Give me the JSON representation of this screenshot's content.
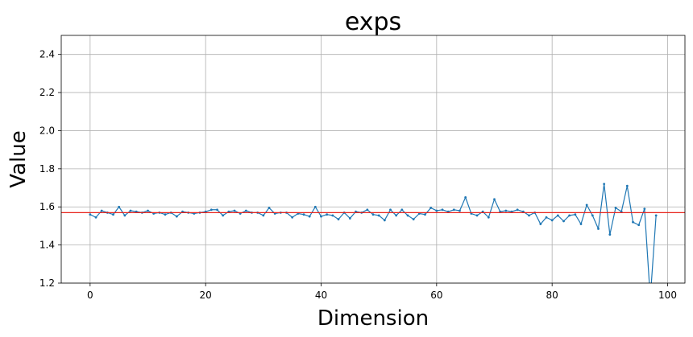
{
  "chart_data": {
    "type": "line",
    "title": "exps",
    "xlabel": "Dimension",
    "ylabel": "Value",
    "xlim": [
      -5,
      103
    ],
    "ylim": [
      1.2,
      2.5
    ],
    "xticks": [
      0,
      20,
      40,
      60,
      80,
      100
    ],
    "yticks": [
      1.2,
      1.4,
      1.6,
      1.8,
      2.0,
      2.2,
      2.4
    ],
    "xtick_labels": [
      "0",
      "20",
      "40",
      "60",
      "80",
      "100"
    ],
    "ytick_labels": [
      "1.2",
      "1.4",
      "1.6",
      "1.8",
      "2.0",
      "2.2",
      "2.4"
    ],
    "grid": true,
    "series": [
      {
        "color": "#1f77b4",
        "x": [
          0,
          1,
          2,
          3,
          4,
          5,
          6,
          7,
          8,
          9,
          10,
          11,
          12,
          13,
          14,
          15,
          16,
          17,
          18,
          19,
          20,
          21,
          22,
          23,
          24,
          25,
          26,
          27,
          28,
          29,
          30,
          31,
          32,
          33,
          34,
          35,
          36,
          37,
          38,
          39,
          40,
          41,
          42,
          43,
          44,
          45,
          46,
          47,
          48,
          49,
          50,
          51,
          52,
          53,
          54,
          55,
          56,
          57,
          58,
          59,
          60,
          61,
          62,
          63,
          64,
          65,
          66,
          67,
          68,
          69,
          70,
          71,
          72,
          73,
          74,
          75,
          76,
          77,
          78,
          79,
          80,
          81,
          82,
          83,
          84,
          85,
          86,
          87,
          88,
          89,
          90,
          91,
          92,
          93,
          94,
          95,
          96,
          97,
          98
        ],
        "values": [
          1.56,
          1.545,
          1.58,
          1.57,
          1.56,
          1.6,
          1.555,
          1.58,
          1.575,
          1.57,
          1.58,
          1.565,
          1.57,
          1.56,
          1.57,
          1.55,
          1.575,
          1.57,
          1.565,
          1.57,
          1.575,
          1.585,
          1.585,
          1.555,
          1.575,
          1.58,
          1.565,
          1.58,
          1.57,
          1.57,
          1.555,
          1.595,
          1.565,
          1.57,
          1.57,
          1.545,
          1.565,
          1.56,
          1.55,
          1.6,
          1.55,
          1.56,
          1.555,
          1.535,
          1.57,
          1.54,
          1.575,
          1.57,
          1.585,
          1.56,
          1.555,
          1.53,
          1.585,
          1.555,
          1.585,
          1.555,
          1.535,
          1.565,
          1.56,
          1.595,
          1.58,
          1.585,
          1.575,
          1.585,
          1.58,
          1.65,
          1.565,
          1.555,
          1.575,
          1.545,
          1.64,
          1.575,
          1.58,
          1.575,
          1.585,
          1.575,
          1.555,
          1.57,
          1.51,
          1.545,
          1.53,
          1.555,
          1.525,
          1.555,
          1.56,
          1.51,
          1.61,
          1.555,
          1.485,
          1.72,
          1.455,
          1.595,
          1.575,
          1.71,
          1.52,
          1.505,
          1.59,
          1.12,
          1.555
        ]
      }
    ],
    "reference_line": {
      "y": 1.57,
      "color": "#e8221b"
    }
  }
}
